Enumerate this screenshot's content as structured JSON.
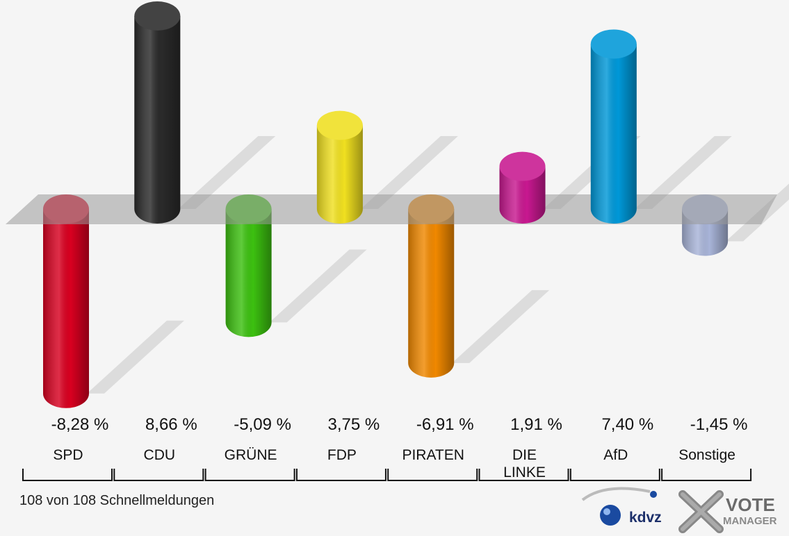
{
  "chart_data": {
    "type": "bar",
    "categories": [
      "SPD",
      "CDU",
      "GRÜNE",
      "FDP",
      "PIRATEN",
      "DIE LINKE",
      "AfD",
      "Sonstige"
    ],
    "category_labels": [
      [
        "SPD"
      ],
      [
        "CDU"
      ],
      [
        "GRÜNE"
      ],
      [
        "FDP"
      ],
      [
        "PIRATEN"
      ],
      [
        "DIE",
        "LINKE"
      ],
      [
        "AfD"
      ],
      [
        "Sonstige"
      ]
    ],
    "values": [
      -8.28,
      8.66,
      -5.09,
      3.75,
      -6.91,
      1.91,
      7.4,
      -1.45
    ],
    "value_labels": [
      "-8,28 %",
      "8,66 %",
      "-5,09 %",
      "3,75 %",
      "-6,91 %",
      "1,91 %",
      "7,40 %",
      "-1,45 %"
    ],
    "colors": [
      "#d80020",
      "#2a2a2a",
      "#3cc010",
      "#f0e020",
      "#f08800",
      "#c81890",
      "#0098d8",
      "#a8b4d8"
    ],
    "ylim": [
      -8.28,
      8.66
    ]
  },
  "footer": {
    "reports": "108 von 108 Schnellmeldungen"
  },
  "logo": {
    "kdvz": "kdvz",
    "vote": "VOTE",
    "manager": "MANAGER"
  }
}
